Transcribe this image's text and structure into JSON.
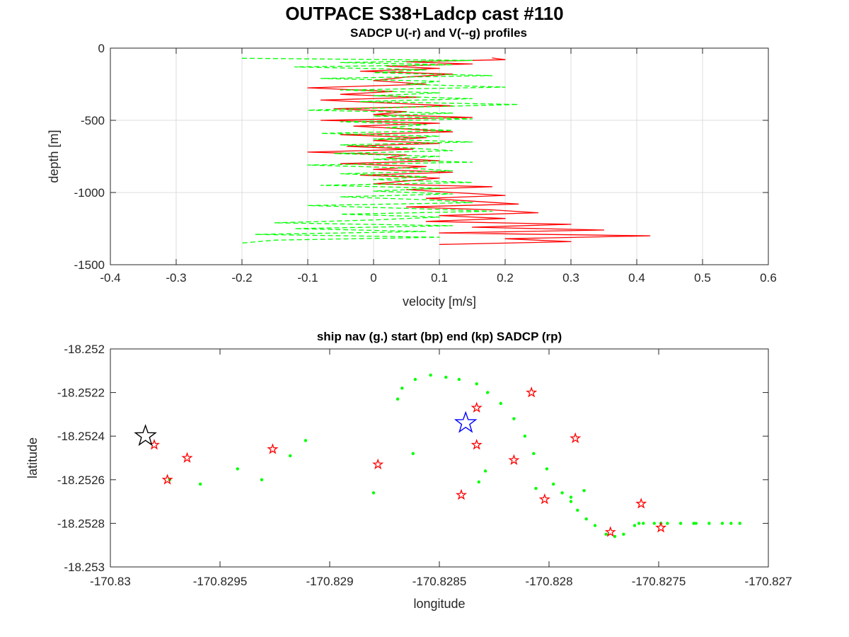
{
  "figure": {
    "title": "OUTPACE S38+Ladcp cast #110"
  },
  "chart_data": [
    {
      "type": "line",
      "title": "SADCP U(-r) and V(--g) profiles",
      "xlabel": "velocity [m/s]",
      "ylabel": "depth [m]",
      "xlim": [
        -0.4,
        0.6
      ],
      "ylim": [
        -1500,
        0
      ],
      "xticks": [
        "-0.4",
        "-0.3",
        "-0.2",
        "-0.1",
        "0",
        "0.1",
        "0.2",
        "0.3",
        "0.4",
        "0.5",
        "0.6"
      ],
      "yticks": [
        "0",
        "-500",
        "-1000",
        "-1500"
      ],
      "grid": true,
      "colors": {
        "u": "#ff0000",
        "v": "#00ff00"
      },
      "series": [
        {
          "key": "u",
          "style": "solid",
          "depth": [
            -68,
            -80,
            -95,
            -110,
            -125,
            -140,
            -160,
            -180,
            -200,
            -225,
            -250,
            -275,
            -300,
            -320,
            -340,
            -360,
            -380,
            -400,
            -420,
            -440,
            -460,
            -480,
            -500,
            -520,
            -540,
            -560,
            -580,
            -600,
            -620,
            -640,
            -660,
            -680,
            -700,
            -720,
            -740,
            -760,
            -780,
            -800,
            -820,
            -840,
            -860,
            -880,
            -900,
            -920,
            -940,
            -960,
            -980,
            -1000,
            -1020,
            -1040,
            -1060,
            -1080,
            -1100,
            -1120,
            -1140,
            -1160,
            -1180,
            -1200,
            -1220,
            -1240,
            -1260,
            -1280,
            -1300,
            -1320,
            -1340,
            -1360
          ],
          "values": [
            0.18,
            0.2,
            0.05,
            0.15,
            0.02,
            0.1,
            -0.02,
            0.12,
            0.05,
            0.0,
            0.08,
            -0.1,
            0.03,
            -0.05,
            0.07,
            -0.08,
            0.02,
            0.12,
            -0.06,
            0.05,
            0.0,
            0.15,
            -0.08,
            0.1,
            -0.03,
            0.05,
            0.12,
            -0.05,
            0.08,
            0.0,
            0.1,
            -0.04,
            0.06,
            -0.1,
            0.05,
            0.02,
            0.1,
            -0.05,
            0.08,
            0.0,
            0.12,
            -0.02,
            0.1,
            0.05,
            0.0,
            0.18,
            0.05,
            0.12,
            0.2,
            0.08,
            0.15,
            0.22,
            0.05,
            0.18,
            0.25,
            0.1,
            0.2,
            0.08,
            0.3,
            0.15,
            0.35,
            0.1,
            0.42,
            0.2,
            0.3,
            0.1
          ]
        },
        {
          "key": "v",
          "style": "dashed",
          "depth": [
            -70,
            -85,
            -100,
            -115,
            -130,
            -150,
            -170,
            -190,
            -210,
            -230,
            -250,
            -270,
            -290,
            -310,
            -330,
            -350,
            -370,
            -390,
            -410,
            -430,
            -450,
            -470,
            -490,
            -510,
            -530,
            -550,
            -570,
            -590,
            -610,
            -630,
            -650,
            -670,
            -690,
            -710,
            -730,
            -750,
            -770,
            -790,
            -810,
            -830,
            -850,
            -870,
            -890,
            -910,
            -930,
            -950,
            -970,
            -990,
            -1010,
            -1030,
            -1050,
            -1070,
            -1090,
            -1110,
            -1130,
            -1150,
            -1170,
            -1190,
            -1210,
            -1230,
            -1250,
            -1270,
            -1290,
            -1310,
            -1330,
            -1350
          ],
          "values": [
            -0.2,
            0.15,
            -0.05,
            0.12,
            -0.12,
            0.08,
            0.0,
            0.18,
            -0.08,
            0.1,
            0.05,
            0.2,
            -0.05,
            0.1,
            0.0,
            0.15,
            -0.02,
            0.22,
            0.05,
            -0.1,
            0.12,
            0.0,
            0.15,
            -0.05,
            0.08,
            0.02,
            0.12,
            -0.08,
            0.1,
            0.0,
            0.15,
            -0.05,
            0.05,
            0.12,
            -0.06,
            0.1,
            0.0,
            0.15,
            -0.1,
            0.05,
            0.12,
            -0.05,
            0.08,
            0.0,
            0.15,
            -0.08,
            0.1,
            0.0,
            0.12,
            -0.05,
            0.08,
            0.15,
            -0.1,
            0.05,
            0.18,
            -0.05,
            0.1,
            0.0,
            -0.15,
            0.12,
            -0.12,
            0.08,
            -0.18,
            0.1,
            -0.15,
            -0.2
          ]
        }
      ]
    },
    {
      "type": "scatter",
      "title": "ship nav (g.) start (bp) end (kp) SADCP (rp)",
      "xlabel": "longitude",
      "ylabel": "latitude",
      "xlim": [
        -170.83,
        -170.827
      ],
      "ylim": [
        -18.253,
        -18.252
      ],
      "xticks": [
        "-170.83",
        "-170.8295",
        "-170.829",
        "-170.8285",
        "-170.828",
        "-170.8275",
        "-170.827"
      ],
      "yticks": [
        "-18.252",
        "-18.2522",
        "-18.2524",
        "-18.2526",
        "-18.2528",
        "-18.253"
      ],
      "grid": false,
      "colors": {
        "nav": "#00ff00",
        "start": "#0000ff",
        "end": "#000000",
        "sadcp": "#ff0000"
      },
      "ship_nav": {
        "lon": [
          -170.82911,
          -170.82918,
          -170.82942,
          -170.82959,
          -170.82931,
          -170.82973,
          -170.82869,
          -170.82867,
          -170.82861,
          -170.82854,
          -170.82847,
          -170.82841,
          -170.82833,
          -170.82828,
          -170.82822,
          -170.82816,
          -170.82811,
          -170.82807,
          -170.82801,
          -170.82798,
          -170.82794,
          -170.8279,
          -170.82787,
          -170.82783,
          -170.82779,
          -170.82774,
          -170.8277,
          -170.82766,
          -170.82761,
          -170.82757,
          -170.82752,
          -170.82749,
          -170.82746,
          -170.8274,
          -170.82733,
          -170.82727,
          -170.82721,
          -170.82717,
          -170.82713,
          -170.82734,
          -170.82749,
          -170.82759,
          -170.8279,
          -170.82806,
          -170.82829,
          -170.82862,
          -170.82832,
          -170.82784,
          -170.8288
        ],
        "lat": [
          -18.25242,
          -18.25249,
          -18.25255,
          -18.25262,
          -18.2526,
          -18.2526,
          -18.25223,
          -18.25218,
          -18.25214,
          -18.25212,
          -18.25213,
          -18.25214,
          -18.25216,
          -18.2522,
          -18.25225,
          -18.25232,
          -18.2524,
          -18.25248,
          -18.25255,
          -18.25262,
          -18.25266,
          -18.2527,
          -18.25274,
          -18.25278,
          -18.25281,
          -18.25285,
          -18.25286,
          -18.25285,
          -18.25281,
          -18.2528,
          -18.2528,
          -18.2528,
          -18.2528,
          -18.2528,
          -18.2528,
          -18.2528,
          -18.2528,
          -18.2528,
          -18.2528,
          -18.2528,
          -18.2528,
          -18.2528,
          -18.25268,
          -18.25264,
          -18.25256,
          -18.25248,
          -18.25261,
          -18.25265,
          -18.25266
        ]
      },
      "start": {
        "lon": -170.82838,
        "lat": -18.25234
      },
      "end": {
        "lon": -170.82984,
        "lat": -18.2524
      },
      "sadcp": {
        "lon": [
          -170.8298,
          -170.82974,
          -170.82965,
          -170.82926,
          -170.82878,
          -170.8284,
          -170.82833,
          -170.82833,
          -170.82816,
          -170.82808,
          -170.82802,
          -170.82788,
          -170.82772,
          -170.82758,
          -170.82749
        ],
        "lat": [
          -18.25244,
          -18.2526,
          -18.2525,
          -18.25246,
          -18.25253,
          -18.25267,
          -18.25227,
          -18.25244,
          -18.25251,
          -18.2522,
          -18.25269,
          -18.25241,
          -18.25284,
          -18.25271,
          -18.25282
        ]
      }
    }
  ]
}
